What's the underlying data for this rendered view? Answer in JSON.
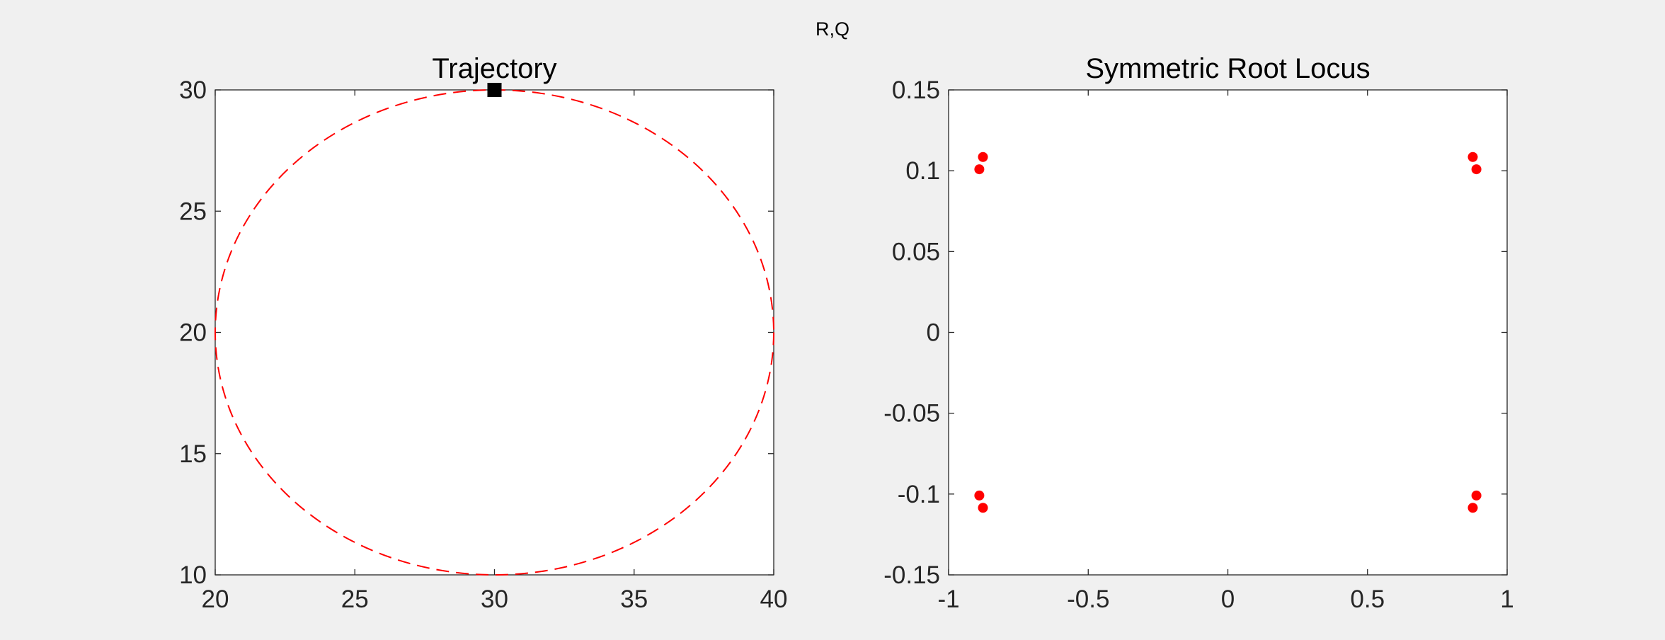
{
  "figure": {
    "suptitle": "R,Q",
    "colors": {
      "background": "#f0f0f0",
      "axes_face": "#ffffff",
      "axis_line": "#262626",
      "series_red": "#ff0000",
      "marker_black": "#000000"
    }
  },
  "chart_data": [
    {
      "type": "line",
      "title": "Trajectory",
      "xlabel": "",
      "ylabel": "",
      "xlim": [
        20,
        40
      ],
      "ylim": [
        10,
        30
      ],
      "xticks": [
        20,
        25,
        30,
        35,
        40
      ],
      "yticks": [
        10,
        15,
        20,
        25,
        30
      ],
      "xtick_labels": [
        "20",
        "25",
        "30",
        "35",
        "40"
      ],
      "ytick_labels": [
        "10",
        "15",
        "20",
        "25",
        "30"
      ],
      "grid": false,
      "series": [
        {
          "kind": "parametric-circle",
          "center": [
            30,
            20
          ],
          "radius": 10,
          "style": "dashed",
          "color": "#ff0000"
        },
        {
          "kind": "marker",
          "marker": "square",
          "color": "#000000",
          "points": [
            [
              30,
              30
            ]
          ]
        }
      ]
    },
    {
      "type": "scatter",
      "title": "Symmetric Root Locus",
      "xlabel": "",
      "ylabel": "",
      "xlim": [
        -1,
        1
      ],
      "ylim": [
        -0.15,
        0.15
      ],
      "xticks": [
        -1,
        -0.5,
        0,
        0.5,
        1
      ],
      "yticks": [
        -0.15,
        -0.1,
        -0.05,
        0,
        0.05,
        0.1,
        0.15
      ],
      "xtick_labels": [
        "-1",
        "-0.5",
        "0",
        "0.5",
        "1"
      ],
      "ytick_labels": [
        "-0.15",
        "-0.1",
        "-0.05",
        "0",
        "0.05",
        "0.1",
        "0.15"
      ],
      "grid": false,
      "series": [
        {
          "kind": "points",
          "marker": "circle",
          "color": "#ff0000",
          "points": [
            [
              -0.89,
              0.1009
            ],
            [
              -0.877,
              0.1085
            ],
            [
              -0.89,
              -0.1009
            ],
            [
              -0.877,
              -0.1085
            ],
            [
              0.89,
              0.1009
            ],
            [
              0.877,
              0.1085
            ],
            [
              0.89,
              -0.1009
            ],
            [
              0.877,
              -0.1085
            ]
          ]
        }
      ]
    }
  ]
}
